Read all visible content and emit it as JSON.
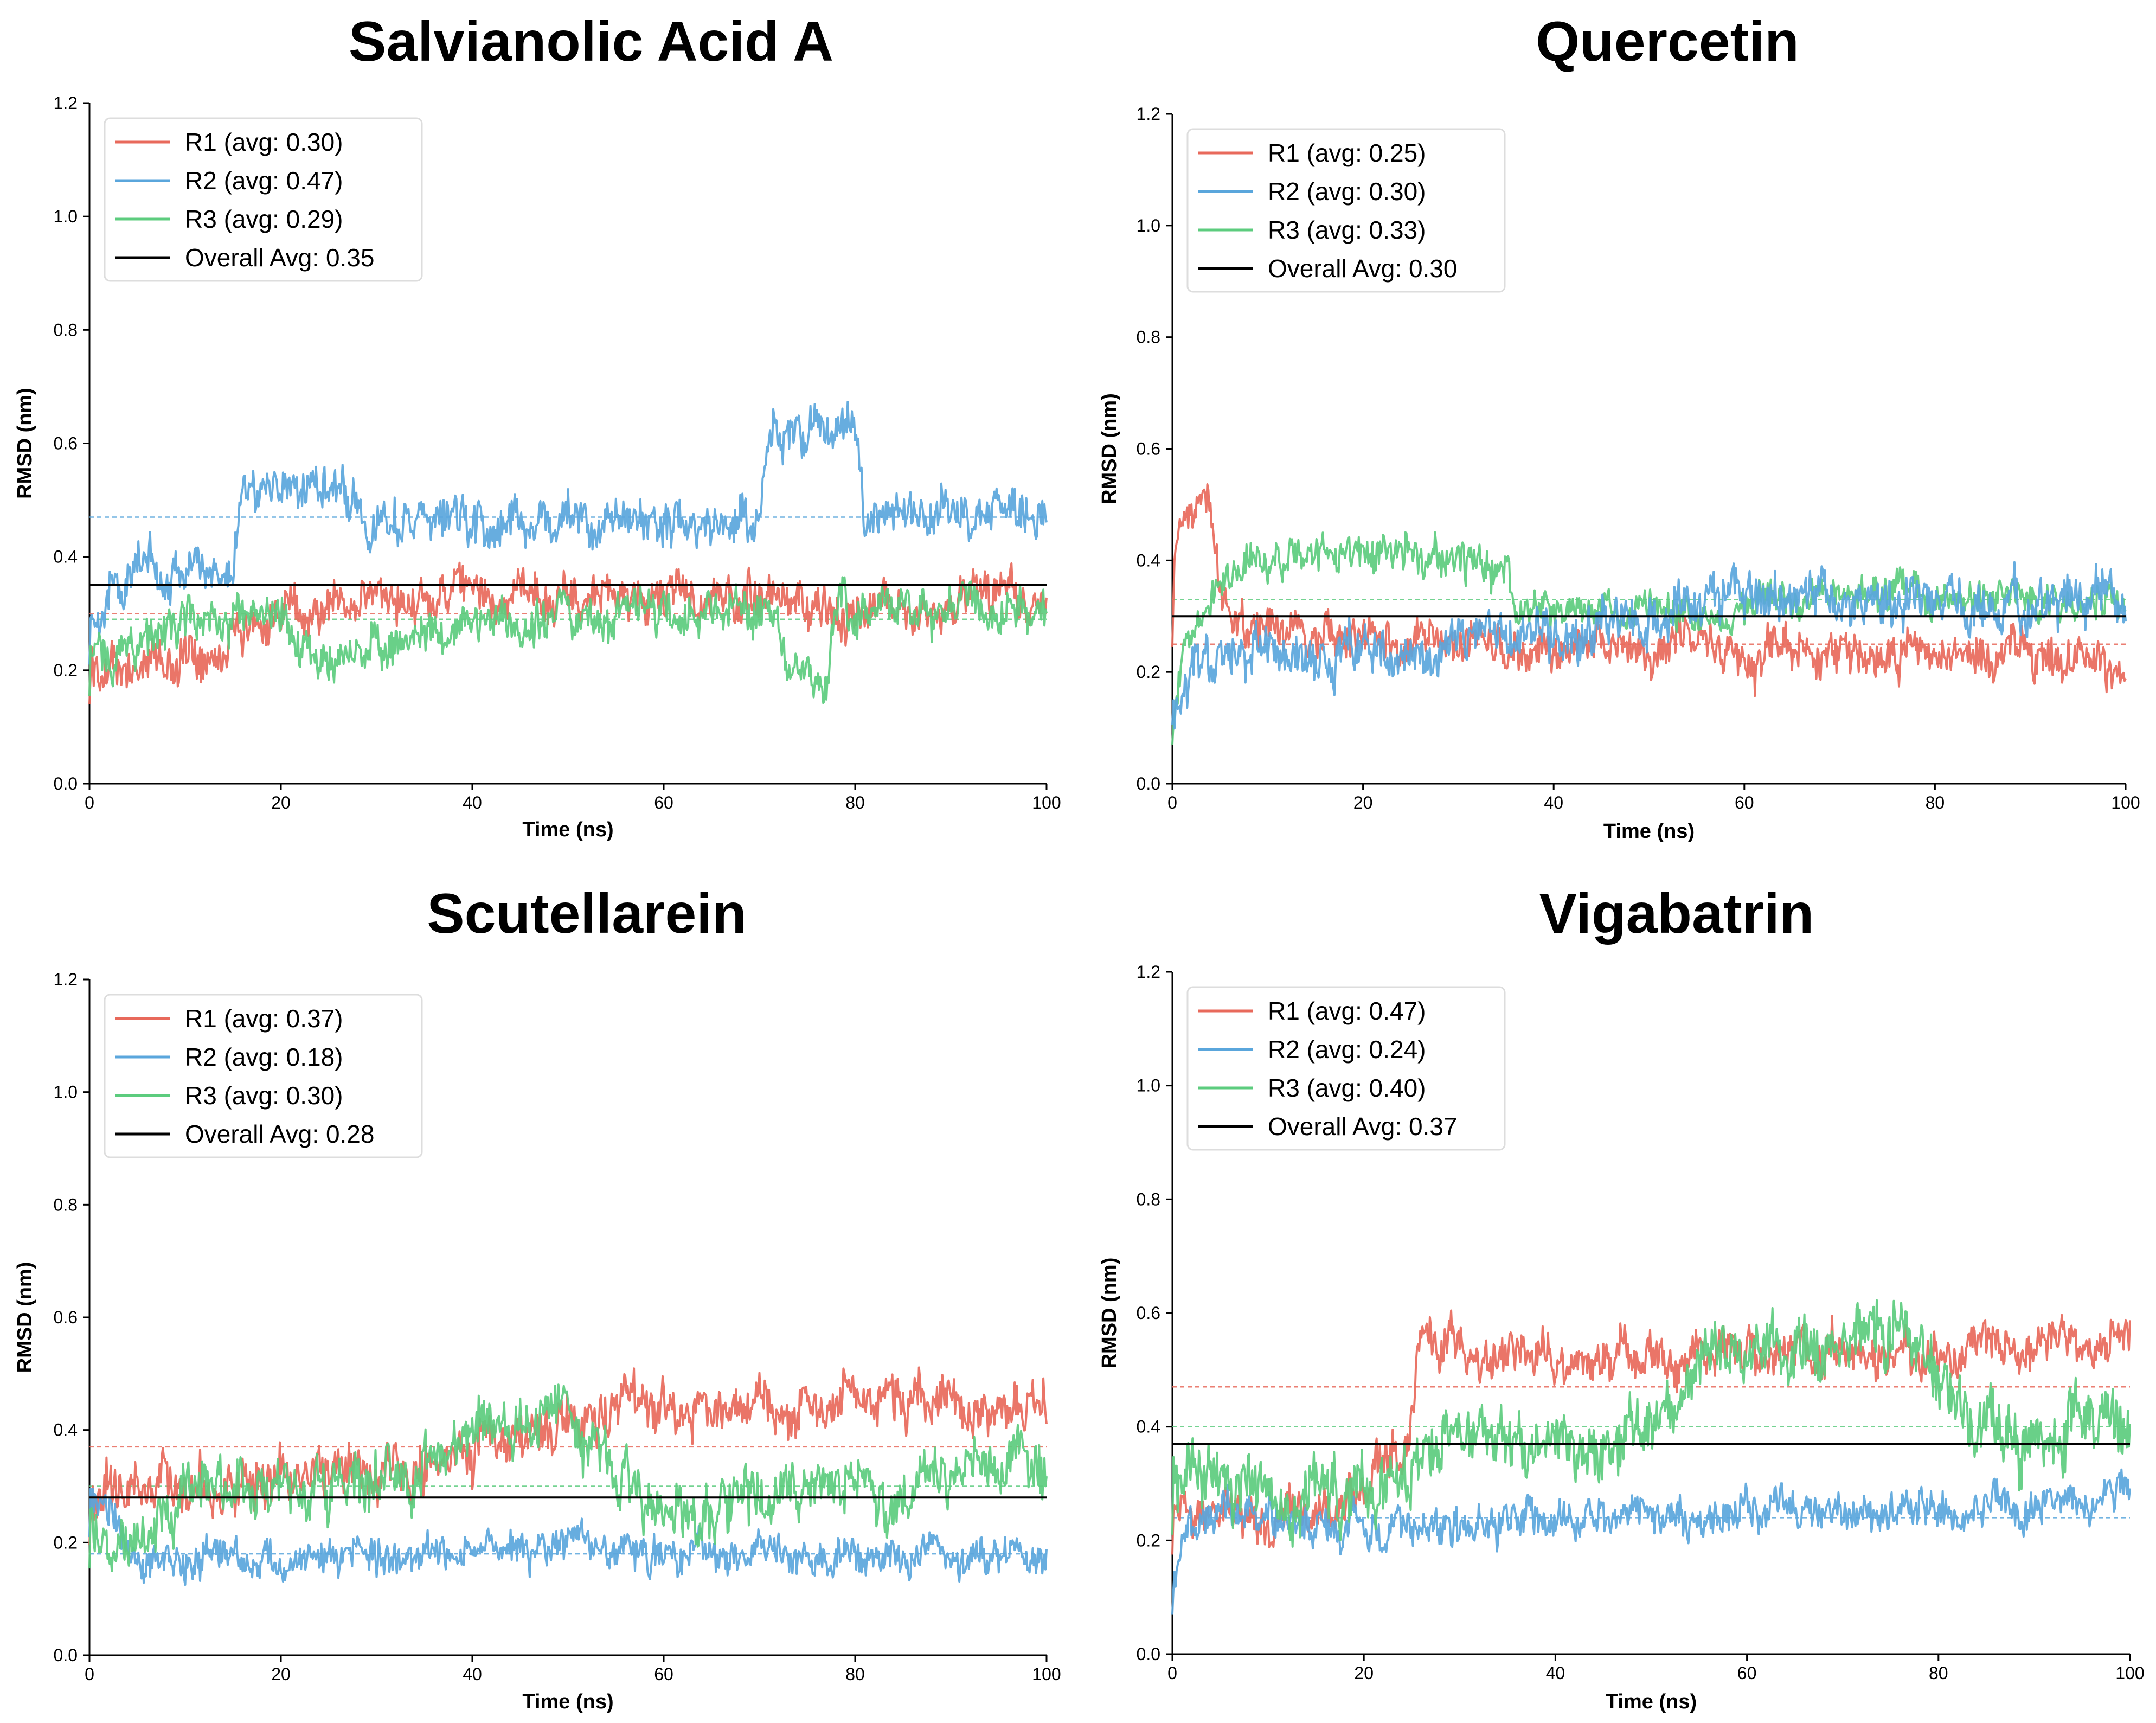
{
  "colors": {
    "R1": "#e8695b",
    "R2": "#5aa6dc",
    "R3": "#5ccc7e",
    "overall": "#000000"
  },
  "chart_data": [
    {
      "type": "line",
      "title": "Salvianolic Acid A",
      "xlabel": "Time (ns)",
      "ylabel": "RMSD (nm)",
      "xlim": [
        0,
        100
      ],
      "ylim": [
        0.0,
        1.2
      ],
      "xticks": [
        "0",
        "20",
        "40",
        "60",
        "80",
        "100"
      ],
      "yticks": [
        "0.0",
        "0.2",
        "0.4",
        "0.6",
        "0.8",
        "1.0",
        "1.2"
      ],
      "legend_position": "top-left",
      "series": [
        {
          "name": "R1 (avg: 0.30)",
          "key": "R1",
          "avg": 0.3,
          "noise": 0.035,
          "profile": [
            [
              0,
              0.2
            ],
            [
              10,
              0.22
            ],
            [
              20,
              0.3
            ],
            [
              30,
              0.33
            ],
            [
              50,
              0.33
            ],
            [
              70,
              0.32
            ],
            [
              80,
              0.31
            ],
            [
              100,
              0.33
            ]
          ]
        },
        {
          "name": "R2 (avg: 0.47)",
          "key": "R2",
          "avg": 0.47,
          "noise": 0.035,
          "profile": [
            [
              0,
              0.3
            ],
            [
              5,
              0.38
            ],
            [
              15,
              0.38
            ],
            [
              16,
              0.53
            ],
            [
              28,
              0.52
            ],
            [
              29,
              0.46
            ],
            [
              70,
              0.46
            ],
            [
              71,
              0.62
            ],
            [
              80,
              0.62
            ],
            [
              81,
              0.48
            ],
            [
              100,
              0.47
            ]
          ]
        },
        {
          "name": "R3 (avg: 0.29)",
          "key": "R3",
          "avg": 0.29,
          "noise": 0.035,
          "profile": [
            [
              0,
              0.22
            ],
            [
              10,
              0.28
            ],
            [
              20,
              0.28
            ],
            [
              24,
              0.22
            ],
            [
              30,
              0.25
            ],
            [
              40,
              0.28
            ],
            [
              60,
              0.31
            ],
            [
              72,
              0.3
            ],
            [
              73,
              0.19
            ],
            [
              77,
              0.19
            ],
            [
              78,
              0.31
            ],
            [
              100,
              0.31
            ]
          ]
        }
      ],
      "overall_avg": 0.35,
      "overall_label": "Overall Avg: 0.35"
    },
    {
      "type": "line",
      "title": "Quercetin",
      "xlabel": "Time (ns)",
      "ylabel": "RMSD (nm)",
      "xlim": [
        0,
        100
      ],
      "ylim": [
        0.0,
        1.2
      ],
      "xticks": [
        "0",
        "20",
        "40",
        "60",
        "80",
        "100"
      ],
      "yticks": [
        "0.0",
        "0.2",
        "0.4",
        "0.6",
        "0.8",
        "1.0",
        "1.2"
      ],
      "legend_position": "top-left",
      "series": [
        {
          "name": "R1 (avg: 0.25)",
          "key": "R1",
          "avg": 0.25,
          "noise": 0.035,
          "profile": [
            [
              0,
              0.35
            ],
            [
              1,
              0.5
            ],
            [
              4,
              0.52
            ],
            [
              5,
              0.35
            ],
            [
              8,
              0.28
            ],
            [
              20,
              0.25
            ],
            [
              50,
              0.24
            ],
            [
              100,
              0.22
            ]
          ]
        },
        {
          "name": "R3 (avg: 0.33)",
          "key": "R3",
          "avg": 0.33,
          "noise": 0.03,
          "profile": [
            [
              0,
              0.1
            ],
            [
              2,
              0.3
            ],
            [
              5,
              0.38
            ],
            [
              10,
              0.41
            ],
            [
              20,
              0.41
            ],
            [
              35,
              0.39
            ],
            [
              36,
              0.3
            ],
            [
              60,
              0.32
            ],
            [
              80,
              0.34
            ],
            [
              100,
              0.32
            ]
          ]
        },
        {
          "name": "R2 (avg: 0.30)",
          "key": "R2",
          "avg": 0.3,
          "noise": 0.04,
          "profile": [
            [
              0,
              0.15
            ],
            [
              3,
              0.22
            ],
            [
              20,
              0.23
            ],
            [
              35,
              0.25
            ],
            [
              40,
              0.27
            ],
            [
              60,
              0.34
            ],
            [
              80,
              0.32
            ],
            [
              100,
              0.34
            ]
          ]
        }
      ],
      "overall_avg": 0.3,
      "overall_label": "Overall Avg: 0.30"
    },
    {
      "type": "line",
      "title": "Scutellarein",
      "xlabel": "Time (ns)",
      "ylabel": "RMSD (nm)",
      "xlim": [
        0,
        100
      ],
      "ylim": [
        0.0,
        1.2
      ],
      "xticks": [
        "0",
        "20",
        "40",
        "60",
        "80",
        "100"
      ],
      "yticks": [
        "0.0",
        "0.2",
        "0.4",
        "0.6",
        "0.8",
        "1.0",
        "1.2"
      ],
      "legend_position": "top-left",
      "series": [
        {
          "name": "R1 (avg: 0.37)",
          "key": "R1",
          "avg": 0.37,
          "noise": 0.04,
          "profile": [
            [
              0,
              0.28
            ],
            [
              10,
              0.3
            ],
            [
              30,
              0.33
            ],
            [
              40,
              0.36
            ],
            [
              50,
              0.42
            ],
            [
              60,
              0.44
            ],
            [
              80,
              0.46
            ],
            [
              90,
              0.42
            ],
            [
              100,
              0.46
            ]
          ]
        },
        {
          "name": "R2 (avg: 0.18)",
          "key": "R2",
          "avg": 0.18,
          "noise": 0.03,
          "profile": [
            [
              0,
              0.3
            ],
            [
              3,
              0.2
            ],
            [
              10,
              0.16
            ],
            [
              30,
              0.17
            ],
            [
              50,
              0.2
            ],
            [
              60,
              0.18
            ],
            [
              100,
              0.17
            ]
          ]
        },
        {
          "name": "R3 (avg: 0.30)",
          "key": "R3",
          "avg": 0.3,
          "noise": 0.045,
          "profile": [
            [
              0,
              0.22
            ],
            [
              5,
              0.2
            ],
            [
              10,
              0.3
            ],
            [
              30,
              0.32
            ],
            [
              40,
              0.4
            ],
            [
              50,
              0.42
            ],
            [
              60,
              0.26
            ],
            [
              80,
              0.3
            ],
            [
              100,
              0.32
            ]
          ]
        }
      ],
      "overall_avg": 0.28,
      "overall_label": "Overall Avg: 0.28"
    },
    {
      "type": "line",
      "title": "Vigabatrin",
      "xlabel": "Time (ns)",
      "ylabel": "RMSD (nm)",
      "xlim": [
        0,
        100
      ],
      "ylim": [
        0.0,
        1.2
      ],
      "xticks": [
        "0",
        "20",
        "40",
        "60",
        "80",
        "100"
      ],
      "yticks": [
        "0.0",
        "0.2",
        "0.4",
        "0.6",
        "0.8",
        "1.0",
        "1.2"
      ],
      "legend_position": "top-left",
      "series": [
        {
          "name": "R1 (avg: 0.47)",
          "key": "R1",
          "avg": 0.47,
          "noise": 0.035,
          "profile": [
            [
              0,
              0.25
            ],
            [
              10,
              0.22
            ],
            [
              20,
              0.3
            ],
            [
              25,
              0.4
            ],
            [
              26,
              0.55
            ],
            [
              40,
              0.52
            ],
            [
              60,
              0.53
            ],
            [
              80,
              0.53
            ],
            [
              100,
              0.56
            ]
          ]
        },
        {
          "name": "R2 (avg: 0.24)",
          "key": "R2",
          "avg": 0.24,
          "noise": 0.03,
          "profile": [
            [
              0,
              0.1
            ],
            [
              1,
              0.22
            ],
            [
              10,
              0.25
            ],
            [
              20,
              0.22
            ],
            [
              40,
              0.24
            ],
            [
              60,
              0.25
            ],
            [
              80,
              0.24
            ],
            [
              100,
              0.28
            ]
          ]
        },
        {
          "name": "R3 (avg: 0.40)",
          "key": "R3",
          "avg": 0.4,
          "noise": 0.05,
          "profile": [
            [
              0,
              0.3
            ],
            [
              10,
              0.28
            ],
            [
              20,
              0.3
            ],
            [
              30,
              0.4
            ],
            [
              40,
              0.36
            ],
            [
              50,
              0.38
            ],
            [
              55,
              0.5
            ],
            [
              75,
              0.58
            ],
            [
              80,
              0.5
            ],
            [
              85,
              0.38
            ],
            [
              100,
              0.4
            ]
          ]
        }
      ],
      "overall_avg": 0.37,
      "overall_label": "Overall Avg: 0.37"
    }
  ]
}
